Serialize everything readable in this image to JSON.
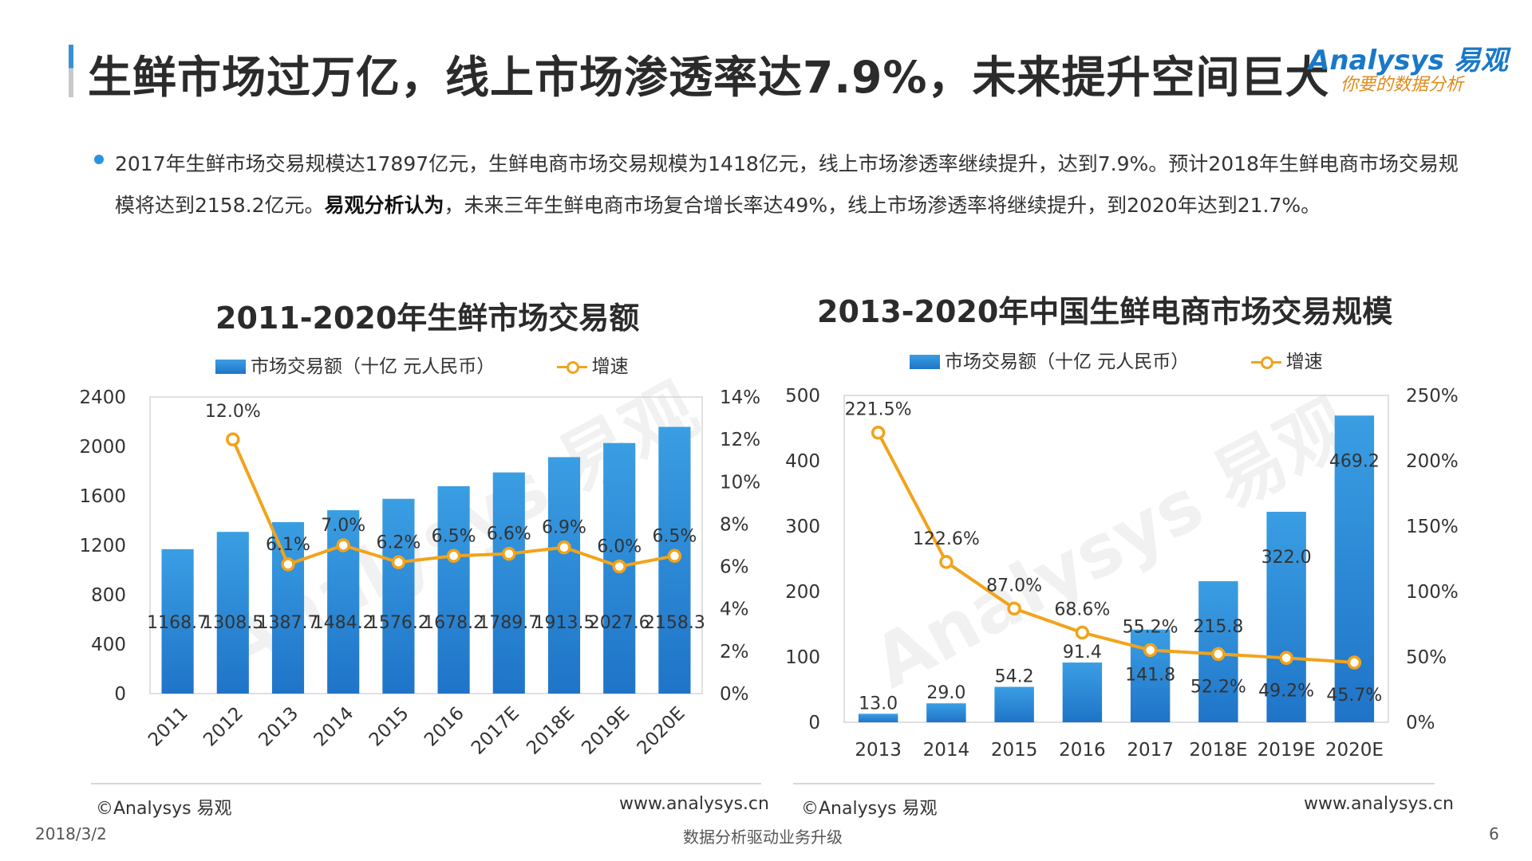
{
  "page": {
    "title": "生鲜市场过万亿，线上市场渗透率达7.9%，未来提升空间巨大",
    "logo_en": "Analysys 易观",
    "logo_cn": "你要的数据分析",
    "summary_part1": "2017年生鲜市场交易规模达17897亿元，生鲜电商市场交易规模为1418亿元，线上市场渗透率继续提升，达到7.9%。预计2018年生鲜电商市场交易规模将达到2158.2亿元。",
    "summary_bold": "易观分析认为",
    "summary_part2": "，未来三年生鲜电商市场复合增长率达49%，线上市场渗透率将继续提升，到2020年达到21.7%。",
    "footer": {
      "left_source": "©Analysys 易观",
      "left_url": "www.analysys.cn",
      "right_source": "©Analysys 易观",
      "right_url": "www.analysys.cn",
      "date": "2018/3/2",
      "center": "数据分析驱动业务升级",
      "page_number": "6"
    },
    "watermark_en": "Analysys 易观",
    "watermark_cn": "你要的数据分析"
  },
  "colors": {
    "bar_top": "#3a9ee3",
    "bar_bottom": "#1f74c8",
    "line": "#f2a31b",
    "accent": "#2c93dd"
  },
  "chart_data": [
    {
      "type": "bar",
      "title": "2011-2020年生鲜市场交易额",
      "categories": [
        "2011",
        "2012",
        "2013",
        "2014",
        "2015",
        "2016",
        "2017E",
        "2018E",
        "2019E",
        "2020E"
      ],
      "series": [
        {
          "name": "市场交易额（十亿 元人民币）",
          "type": "bar",
          "axis": "left",
          "values": [
            1168.7,
            1308.5,
            1387.7,
            1484.2,
            1576.2,
            1678.2,
            1789.7,
            1913.5,
            2027.6,
            2158.3
          ],
          "labels": [
            "1168.7",
            "1308.5",
            "1387.7",
            "1484.2",
            "1576.2",
            "1678.2",
            "1789.7",
            "1913.5",
            "2027.6",
            "2158.3"
          ]
        },
        {
          "name": "增速",
          "type": "line",
          "axis": "right",
          "values": [
            null,
            12.0,
            6.1,
            7.0,
            6.2,
            6.5,
            6.6,
            6.9,
            6.0,
            6.5
          ],
          "labels": [
            "",
            "12.0%",
            "6.1%",
            "7.0%",
            "6.2%",
            "6.5%",
            "6.6%",
            "6.9%",
            "6.0%",
            "6.5%"
          ]
        }
      ],
      "ylim": [
        0,
        2400
      ],
      "yticks": [
        "0",
        "400",
        "800",
        "1200",
        "1600",
        "2000",
        "2400"
      ],
      "y2lim": [
        0,
        14
      ],
      "y2ticks": [
        "0%",
        "2%",
        "4%",
        "6%",
        "8%",
        "10%",
        "12%",
        "14%"
      ],
      "legend_position": "top",
      "grid": false
    },
    {
      "type": "bar",
      "title": "2013-2020年中国生鲜电商市场交易规模",
      "categories": [
        "2013",
        "2014",
        "2015",
        "2016",
        "2017",
        "2018E",
        "2019E",
        "2020E"
      ],
      "series": [
        {
          "name": "市场交易额（十亿 元人民币）",
          "type": "bar",
          "axis": "left",
          "values": [
            13.0,
            29.0,
            54.2,
            91.4,
            141.8,
            215.8,
            322.0,
            469.2
          ],
          "labels": [
            "13.0",
            "29.0",
            "54.2",
            "91.4",
            "141.8",
            "215.8",
            "322.0",
            "469.2"
          ]
        },
        {
          "name": "增速",
          "type": "line",
          "axis": "right",
          "values": [
            221.5,
            122.6,
            87.0,
            68.6,
            55.2,
            52.2,
            49.2,
            45.7
          ],
          "labels": [
            "221.5%",
            "122.6%",
            "87.0%",
            "68.6%",
            "55.2%",
            "52.2%",
            "49.2%",
            "45.7%"
          ]
        }
      ],
      "ylim": [
        0,
        500
      ],
      "yticks": [
        "0",
        "100",
        "200",
        "300",
        "400",
        "500"
      ],
      "y2lim": [
        0,
        250
      ],
      "y2ticks": [
        "0%",
        "50%",
        "100%",
        "150%",
        "200%",
        "250%"
      ],
      "legend_position": "top",
      "grid": false
    }
  ]
}
